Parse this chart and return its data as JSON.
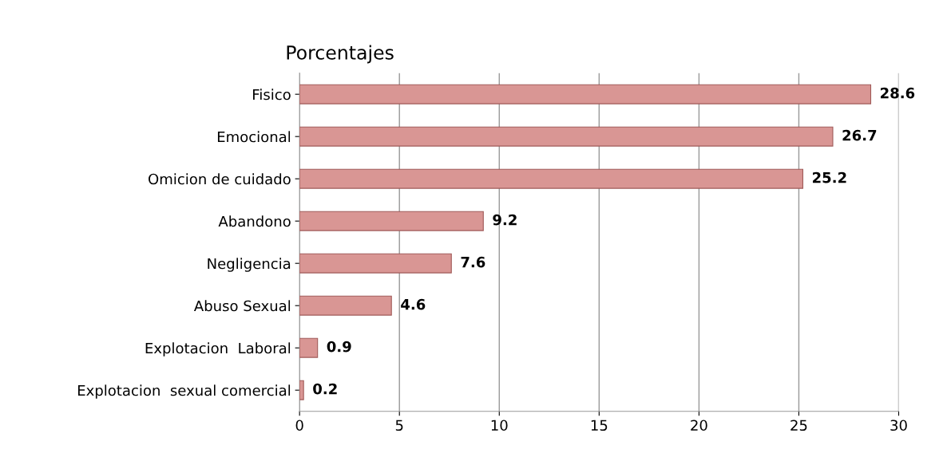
{
  "chart_data": {
    "type": "bar",
    "orientation": "horizontal",
    "title": "Porcentajes",
    "categories": [
      "Fisico",
      "Emocional",
      "Omicion de cuidado",
      "Abandono",
      "Negligencia",
      "Abuso Sexual",
      "Explotacion  Laboral",
      "Explotacion  sexual comercial"
    ],
    "values": [
      28.6,
      26.7,
      25.2,
      9.2,
      7.6,
      4.6,
      0.9,
      0.2
    ],
    "color": "#d99694",
    "xlim": [
      0,
      30
    ],
    "xticks": [
      0,
      5,
      10,
      15,
      20,
      25,
      30
    ],
    "grid": "x",
    "data_labels": true
  }
}
